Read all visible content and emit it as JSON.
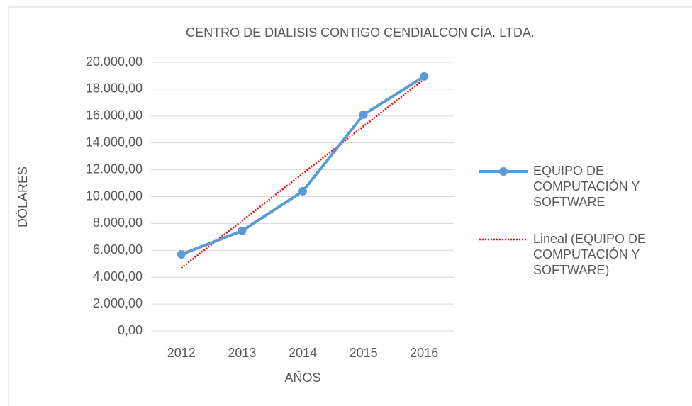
{
  "chart_data": {
    "type": "line",
    "title": "CENTRO DE DIÁLISIS CONTIGO CENDIALCON CÍA. LTDA.",
    "xlabel": "AÑOS",
    "ylabel": "DÓLARES",
    "categories": [
      "2012",
      "2013",
      "2014",
      "2015",
      "2016"
    ],
    "series": [
      {
        "name": "EQUIPO DE COMPUTACIÓN Y SOFTWARE",
        "color": "#5b9bd5",
        "values": [
          5700,
          7450,
          10400,
          16100,
          18950
        ]
      },
      {
        "name": "Lineal (EQUIPO DE COMPUTACIÓN Y SOFTWARE)",
        "color": "#ff0000",
        "style": "dotted",
        "values": [
          4690,
          8205,
          11720,
          15235,
          18750
        ]
      }
    ],
    "ylim": [
      0,
      20000
    ],
    "yticks": [
      {
        "value": 0,
        "label": "0,00"
      },
      {
        "value": 2000,
        "label": "2.000,00"
      },
      {
        "value": 4000,
        "label": "4.000,00"
      },
      {
        "value": 6000,
        "label": "6.000,00"
      },
      {
        "value": 8000,
        "label": "8.000,00"
      },
      {
        "value": 10000,
        "label": "10.000,00"
      },
      {
        "value": 12000,
        "label": "12.000,00"
      },
      {
        "value": 14000,
        "label": "14.000,00"
      },
      {
        "value": 16000,
        "label": "16.000,00"
      },
      {
        "value": 18000,
        "label": "18.000,00"
      },
      {
        "value": 20000,
        "label": "20.000,00"
      }
    ],
    "grid": true,
    "legend": "right"
  }
}
